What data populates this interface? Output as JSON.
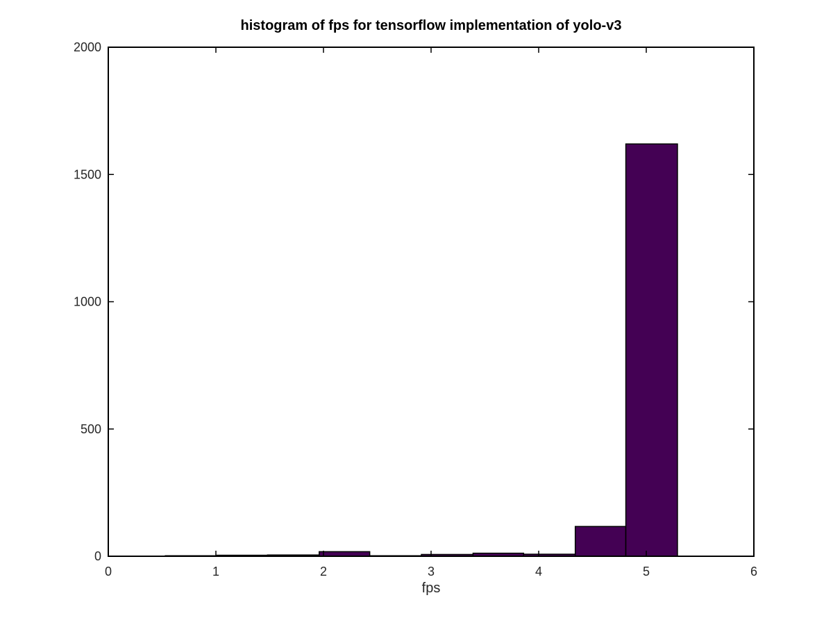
{
  "chart_data": {
    "type": "bar",
    "title": "histogram of fps for tensorflow implementation of yolo-v3",
    "xlabel": "fps",
    "ylabel": "",
    "xlim": [
      0,
      6
    ],
    "ylim": [
      0,
      2000
    ],
    "xticks": [
      0,
      1,
      2,
      3,
      4,
      5,
      6
    ],
    "yticks": [
      0,
      500,
      1000,
      1500,
      2000
    ],
    "grid": false,
    "bar_color": "#440154",
    "bins": [
      {
        "x0": 0.53,
        "x1": 1.01,
        "count": 2
      },
      {
        "x0": 1.01,
        "x1": 1.48,
        "count": 4
      },
      {
        "x0": 1.48,
        "x1": 1.96,
        "count": 5
      },
      {
        "x0": 1.96,
        "x1": 2.43,
        "count": 18
      },
      {
        "x0": 2.43,
        "x1": 2.91,
        "count": 2
      },
      {
        "x0": 2.91,
        "x1": 3.39,
        "count": 7
      },
      {
        "x0": 3.39,
        "x1": 3.86,
        "count": 12
      },
      {
        "x0": 3.86,
        "x1": 4.34,
        "count": 8
      },
      {
        "x0": 4.34,
        "x1": 4.81,
        "count": 117
      },
      {
        "x0": 4.81,
        "x1": 5.29,
        "count": 1620
      }
    ]
  }
}
